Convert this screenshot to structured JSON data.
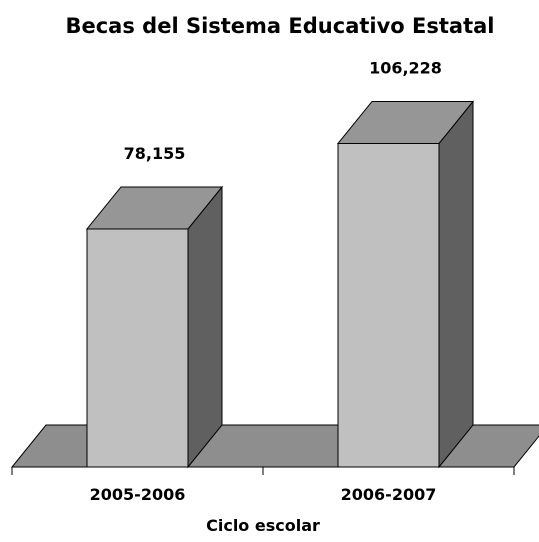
{
  "chart_data": {
    "type": "bar",
    "title": "Becas del Sistema Educativo Estatal",
    "xlabel": "Ciclo escolar",
    "ylabel": "",
    "categories": [
      "2005-2006",
      "2006-2007"
    ],
    "values": [
      78155,
      106228
    ],
    "value_labels": [
      "78,155",
      "106,228"
    ],
    "ylim": [
      0,
      110000
    ],
    "grid": false,
    "legend": "none",
    "style": "3d-column",
    "colors": {
      "bar_front": "#c0c0c0",
      "bar_top": "#969696",
      "bar_side": "#606060",
      "floor": "#8e8e8e",
      "outline": "#000000"
    }
  }
}
